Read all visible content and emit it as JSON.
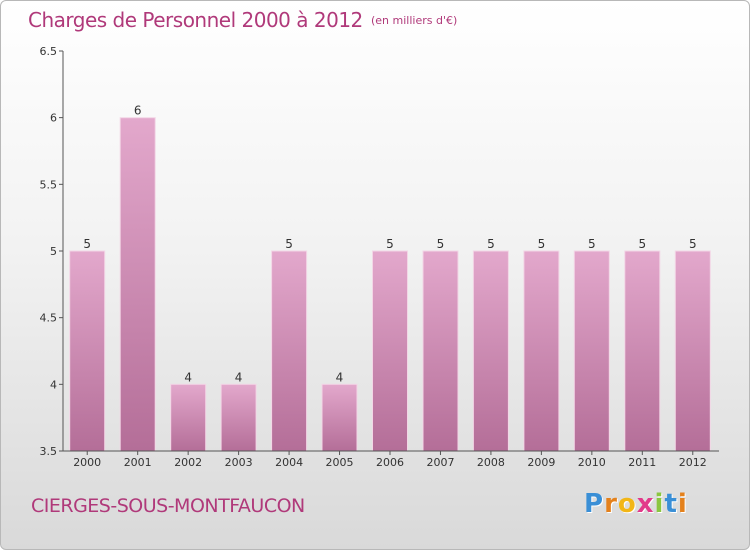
{
  "header": {
    "title": "Charges de Personnel 2000 à 2012",
    "unit": "(en milliers d'€)"
  },
  "footer": {
    "city": "CIERGES-SOUS-MONTFAUCON",
    "logo_letters": [
      "P",
      "r",
      "o",
      "x",
      "i",
      "t",
      "i"
    ],
    "logo_colors": [
      "#3a8fd6",
      "#e4811c",
      "#f2b616",
      "#e23a8a",
      "#8bc640",
      "#3a8fd6",
      "#e4811c"
    ]
  },
  "chart_data": {
    "type": "bar",
    "title": "Charges de Personnel 2000 à 2012",
    "unit_note": "(en milliers d'€)",
    "xlabel": "",
    "ylabel": "",
    "categories": [
      "2000",
      "2001",
      "2002",
      "2003",
      "2004",
      "2005",
      "2006",
      "2007",
      "2008",
      "2009",
      "2010",
      "2011",
      "2012"
    ],
    "values": [
      5,
      6,
      4,
      4,
      5,
      4,
      5,
      5,
      5,
      5,
      5,
      5,
      5
    ],
    "data_labels": [
      "5",
      "6",
      "4",
      "4",
      "5",
      "4",
      "5",
      "5",
      "5",
      "5",
      "5",
      "5",
      "5"
    ],
    "ylim": [
      3.5,
      6.5
    ],
    "yticks": [
      3.5,
      4,
      4.5,
      5,
      5.5,
      6,
      6.5
    ],
    "ytick_labels": [
      "3.5",
      "4",
      "4.5",
      "5",
      "5.5",
      "6",
      "6.5"
    ],
    "grid": false,
    "legend": "none",
    "colors": {
      "bar_top": "#e3a8cc",
      "bar_bottom": "#b46e98",
      "axis": "#555555",
      "text": "#b0397a"
    }
  }
}
